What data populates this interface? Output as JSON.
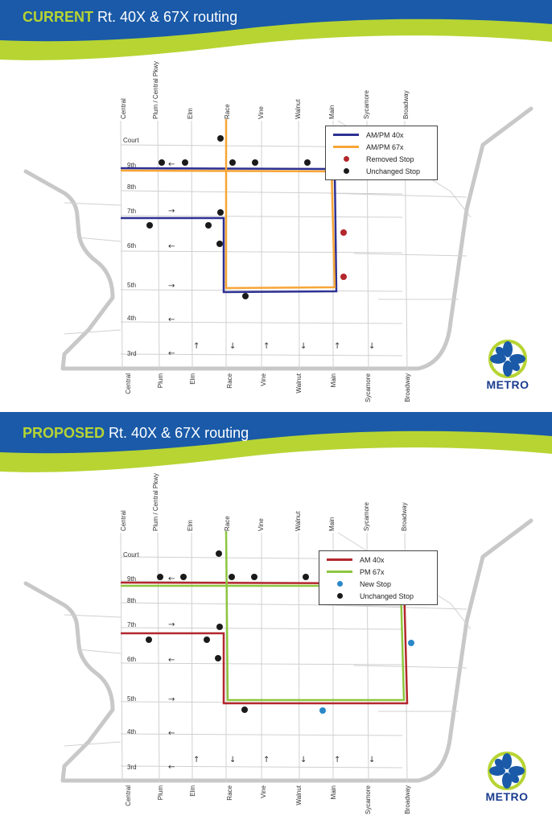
{
  "panels": [
    {
      "title_keyword": "CURRENT",
      "title_rest": " Rt. 40X & 67X routing",
      "streets_ns_top": [
        "Central",
        "Plum / Central Pkwy",
        "Elm",
        "Race",
        "Vine",
        "Walnut",
        "Main",
        "Sycamore",
        "Broadway"
      ],
      "streets_ns_bottom": [
        "Central",
        "Plum",
        "Elm",
        "Race",
        "Vine",
        "Walnut",
        "Main",
        "Sycamore",
        "Broadway"
      ],
      "streets_ew": [
        "Court",
        "9th",
        "8th",
        "7th",
        "6th",
        "5th",
        "4th",
        "3rd"
      ],
      "legend": [
        {
          "label": "AM/PM 40x",
          "type": "line",
          "color": "#2e3192"
        },
        {
          "label": "AM/PM 67x",
          "type": "line",
          "color": "#f7a536"
        },
        {
          "label": "Removed Stop",
          "type": "dot",
          "color": "#b3272d"
        },
        {
          "label": "Unchanged Stop",
          "type": "dot",
          "color": "#1a1a1a"
        }
      ],
      "logo_text": "METRO"
    },
    {
      "title_keyword": "PROPOSED",
      "title_rest": " Rt. 40X & 67X routing",
      "streets_ns_top": [
        "Central",
        "Plum / Central Pkwy",
        "Elm",
        "Race",
        "Vine",
        "Walnut",
        "Main",
        "Sycamore",
        "Broadway"
      ],
      "streets_ns_bottom": [
        "Central",
        "Plum",
        "Elm",
        "Race",
        "Vine",
        "Walnut",
        "Main",
        "Sycamore",
        "Broadway"
      ],
      "streets_ew": [
        "Court",
        "9th",
        "8th",
        "7th",
        "6th",
        "5th",
        "4th",
        "3rd"
      ],
      "legend": [
        {
          "label": "AM 40x",
          "type": "line",
          "color": "#b3272d"
        },
        {
          "label": "PM 67x",
          "type": "line",
          "color": "#8dc63f"
        },
        {
          "label": "New Stop",
          "type": "dot",
          "color": "#2a88c9"
        },
        {
          "label": "Unchanged Stop",
          "type": "dot",
          "color": "#1a1a1a"
        }
      ],
      "logo_text": "METRO"
    }
  ],
  "colors": {
    "banner_blue": "#1a5aa8",
    "banner_green": "#b7d433",
    "boundary": "#c8c8c8",
    "streets": "#d0d0d0"
  }
}
